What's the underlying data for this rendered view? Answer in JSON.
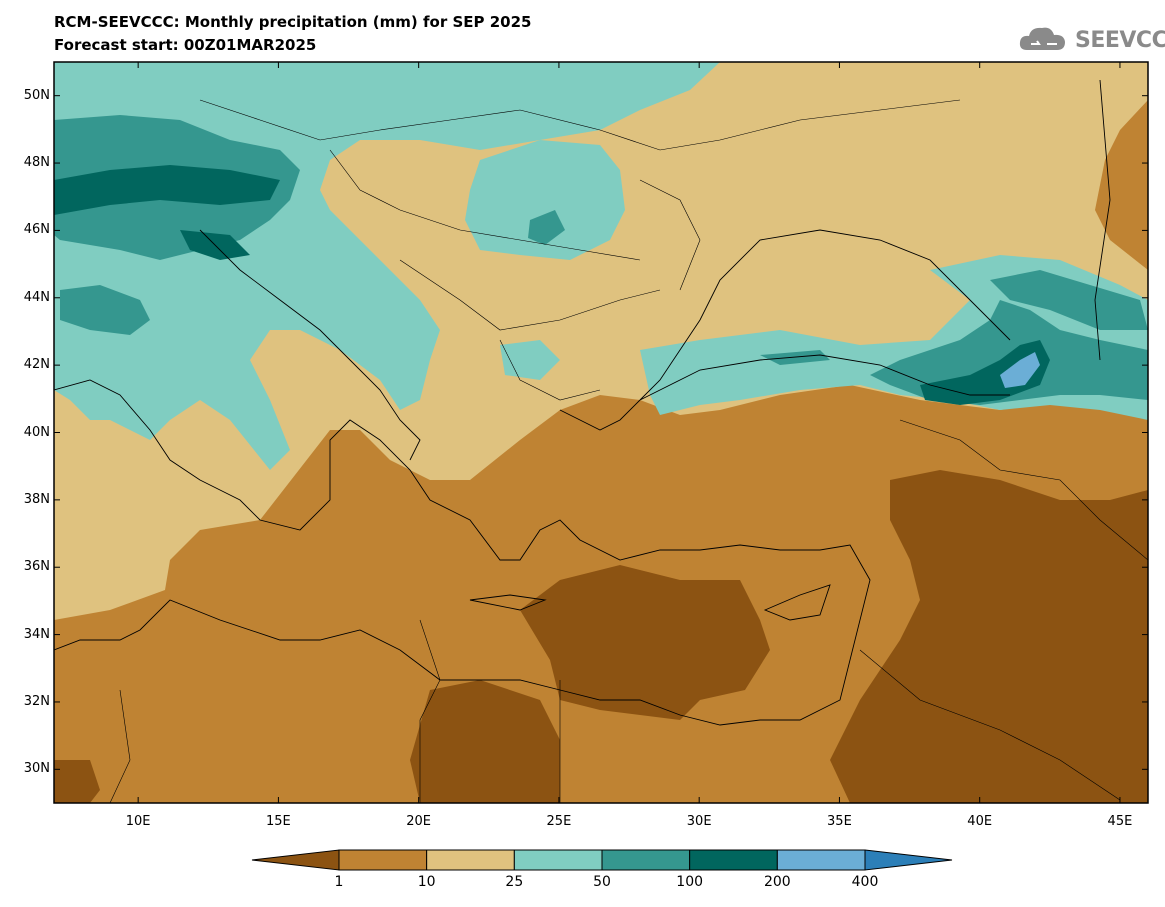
{
  "header": {
    "title": "RCM-SEEVCCC: Monthly precipitation (mm) for SEP 2025",
    "subtitle": "Forecast start: 00Z01MAR2025",
    "logo_text": "SEEVCCC"
  },
  "map": {
    "lon_range": [
      7,
      46
    ],
    "lat_range": [
      29,
      51
    ],
    "lat_ticks": [
      "50N",
      "48N",
      "46N",
      "44N",
      "42N",
      "40N",
      "38N",
      "36N",
      "34N",
      "32N",
      "30N"
    ],
    "lon_ticks": [
      "10E",
      "15E",
      "20E",
      "25E",
      "30E",
      "35E",
      "40E",
      "45E"
    ]
  },
  "colorbar": {
    "labels": [
      "1",
      "10",
      "25",
      "50",
      "100",
      "200",
      "400"
    ],
    "colors": [
      "#8c5312",
      "#bf8333",
      "#dfc27f",
      "#80cdc1",
      "#35978f",
      "#01665e",
      "#6baed6",
      "#2c7fb8"
    ]
  }
}
